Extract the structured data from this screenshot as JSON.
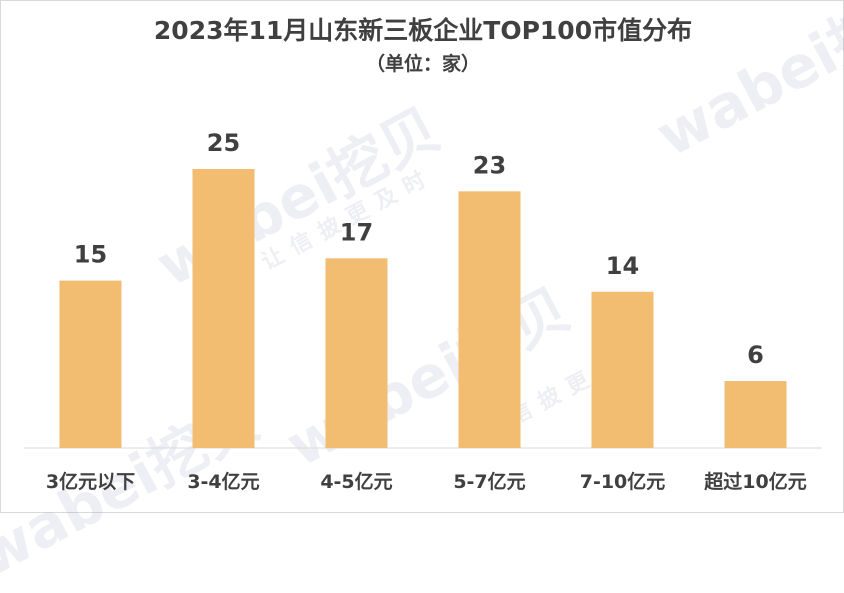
{
  "chart_data": {
    "type": "bar",
    "title": "2023年11月山东新三板企业TOP100市值分布",
    "subtitle": "（单位：家）",
    "categories": [
      "3亿元以下",
      "3-4亿元",
      "4-5亿元",
      "5-7亿元",
      "7-10亿元",
      "超过10亿元"
    ],
    "values": [
      15,
      25,
      17,
      23,
      14,
      6
    ],
    "xlabel": "",
    "ylabel": "",
    "ylim": [
      0,
      30
    ],
    "grid": false,
    "legend": "none",
    "bar_color": "#F2BC71",
    "label_color": "#404040"
  },
  "watermark": {
    "brand": "wabei挖贝",
    "slogan": "让信披更及时"
  }
}
